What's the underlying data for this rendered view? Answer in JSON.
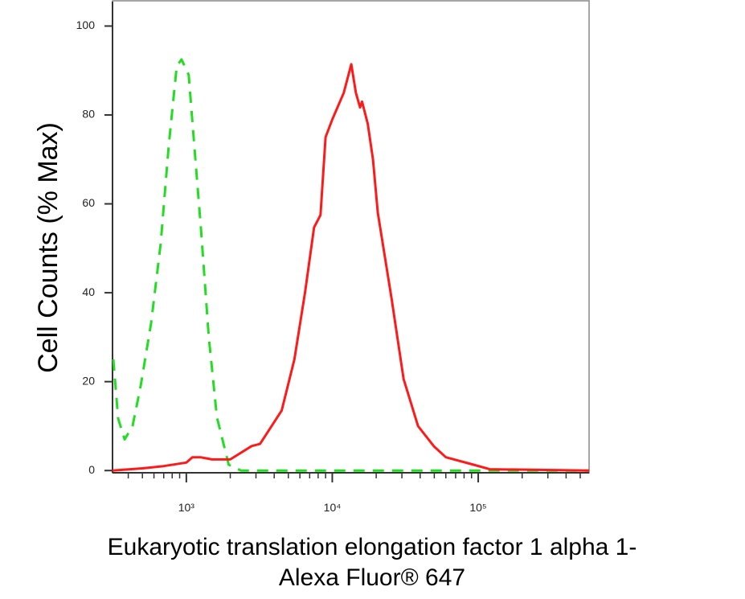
{
  "chart_data": {
    "type": "line",
    "xlabel": [
      "Eukaryotic translation elongation factor 1 alpha 1-",
      "Alexa Fluor® 647"
    ],
    "ylabel": "Cell Counts (% Max)",
    "xscale": "log",
    "xlim": [
      312,
      575000
    ],
    "ylim": [
      -0.5,
      105.5
    ],
    "xticks": [
      {
        "value": 1000,
        "label": "10³"
      },
      {
        "value": 10000,
        "label": "10⁴"
      },
      {
        "value": 100000,
        "label": "10⁵"
      }
    ],
    "xminorticks": [
      400,
      500,
      600,
      700,
      800,
      900,
      2000,
      3000,
      4000,
      5000,
      6000,
      7000,
      8000,
      9000,
      20000,
      30000,
      40000,
      50000,
      60000,
      70000,
      80000,
      90000,
      200000,
      300000,
      400000,
      500000
    ],
    "yticks": [
      0,
      20,
      40,
      60,
      80,
      100
    ],
    "series": [
      {
        "color": "#22dd22",
        "style": "dashed",
        "x": [
          316,
          341,
          378,
          428,
          486,
          573,
          667,
          757,
          859,
          927,
          1038,
          1135,
          1256,
          1426,
          1619,
          1952,
          2365,
          10000,
          100000,
          575000
        ],
        "values": [
          25,
          11.7,
          7,
          10,
          19,
          33,
          51,
          73,
          91,
          92.5,
          89,
          73,
          55,
          30,
          12,
          1.3,
          0,
          0,
          0,
          0
        ]
      },
      {
        "color": "#ff1a1a",
        "style": "solid",
        "x": [
          312,
          500,
          700,
          1000,
          1100,
          1250,
          1500,
          2000,
          2800,
          3200,
          4500,
          5500,
          6500,
          7500,
          8300,
          9000,
          10000,
          12000,
          13500,
          14500,
          15500,
          16000,
          17500,
          19000,
          20500,
          25500,
          30800,
          38700,
          49900,
          60000,
          93000,
          120000,
          575000
        ],
        "values": [
          0,
          0.5,
          1,
          1.8,
          3,
          3,
          2.5,
          2.5,
          5.5,
          6,
          13.5,
          25,
          40,
          54.7,
          57.5,
          75,
          79,
          85,
          91.4,
          85,
          81.7,
          83,
          78,
          70,
          58,
          38.6,
          20.6,
          10,
          5.4,
          3,
          1.3,
          0.3,
          0
        ]
      }
    ]
  }
}
